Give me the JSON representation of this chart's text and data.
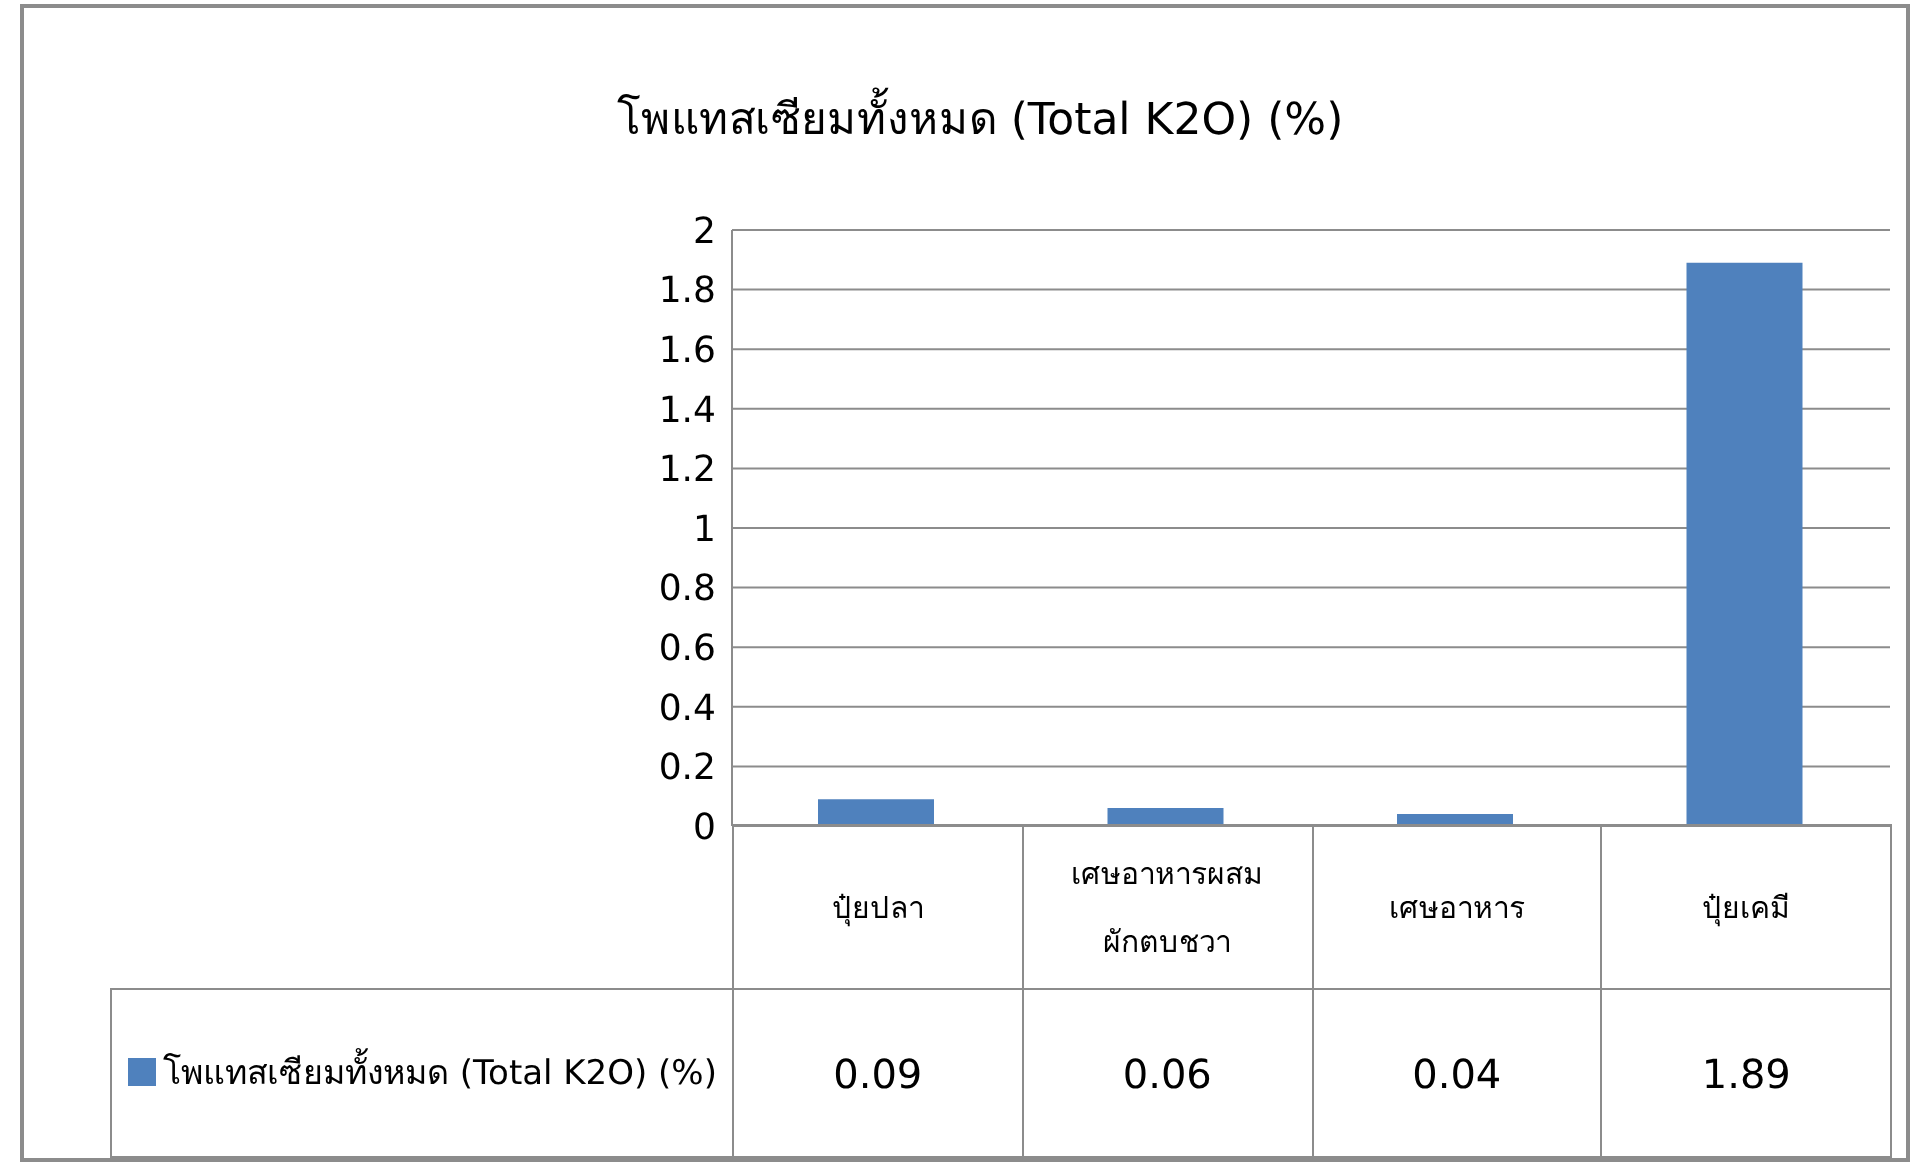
{
  "chart_data": {
    "type": "bar",
    "title": "โพแทสเซียมทั้งหมด  (Total K2O) (%)",
    "categories": [
      "ปุ๋ยปลา",
      "เศษอาหารผสมผักตบชวา",
      "เศษอาหาร",
      "ปุ๋ยเคมี"
    ],
    "series": [
      {
        "name": "โพแทสเซียมทั้งหมด  (Total K2O) (%)",
        "color": "#4f81bd",
        "values": [
          0.09,
          0.06,
          0.04,
          1.89
        ]
      }
    ],
    "ylim": [
      0,
      2
    ],
    "yticks": [
      0,
      0.2,
      0.4,
      0.6,
      0.8,
      1,
      1.2,
      1.4,
      1.6,
      1.8,
      2
    ],
    "grid": "y",
    "legend": "bottom left",
    "data_labels": true
  }
}
